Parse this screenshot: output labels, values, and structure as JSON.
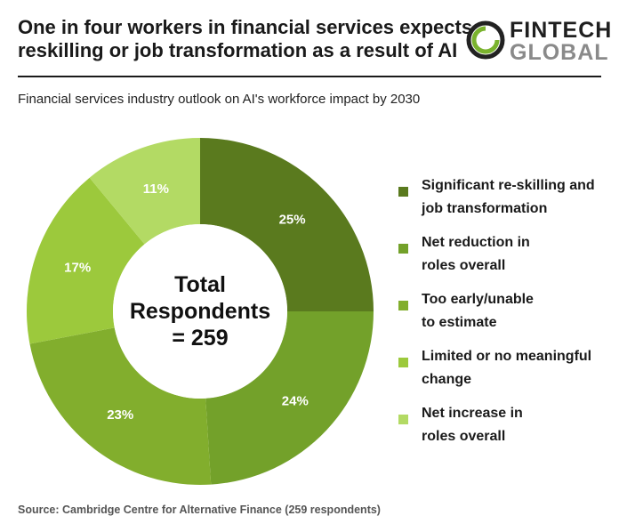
{
  "header": {
    "title_line1": "One in four workers in financial services expects",
    "title_line2": "reskilling or job transformation as a result of AI",
    "logo_fin": "FINTECH",
    "logo_global": "GLOBAL",
    "subtitle": "Financial services industry outlook on AI's workforce impact by 2030"
  },
  "chart_data": {
    "type": "pie",
    "subtype": "donut",
    "title": "Financial services industry outlook on AI's workforce impact by 2030",
    "center_label": [
      "Total",
      "Respondents",
      "= 259"
    ],
    "categories": [
      "Significant re-skilling and job transformation",
      "Net reduction in roles overall",
      "Too early/unable to estimate",
      "Limited or no meaningful change",
      "Net increase in roles overall"
    ],
    "values": [
      25,
      24,
      23,
      17,
      11
    ],
    "value_labels": [
      "25%",
      "24%",
      "23%",
      "17%",
      "11%"
    ],
    "unit": "%",
    "colors": [
      "#5a7a1e",
      "#73a12a",
      "#82ae2d",
      "#9cc93c",
      "#b3da64"
    ],
    "legend_position": "right"
  },
  "legend": {
    "items": [
      {
        "line1": "Significant re-skilling and",
        "line2": "job transformation",
        "color": "#5a7a1e"
      },
      {
        "line1": "Net reduction in",
        "line2": "roles overall",
        "color": "#73a12a"
      },
      {
        "line1": "Too early/unable",
        "line2": "to estimate",
        "color": "#82ae2d"
      },
      {
        "line1": "Limited or no meaningful",
        "line2": "change",
        "color": "#9cc93c"
      },
      {
        "line1": "Net increase in",
        "line2": "roles overall",
        "color": "#b3da64"
      }
    ]
  },
  "footer": {
    "source": "Source: Cambridge Centre for Alternative Finance (259 respondents)"
  },
  "colors": {
    "logo_ring_dark": "#222222",
    "logo_ring_green": "#7ab32e"
  }
}
